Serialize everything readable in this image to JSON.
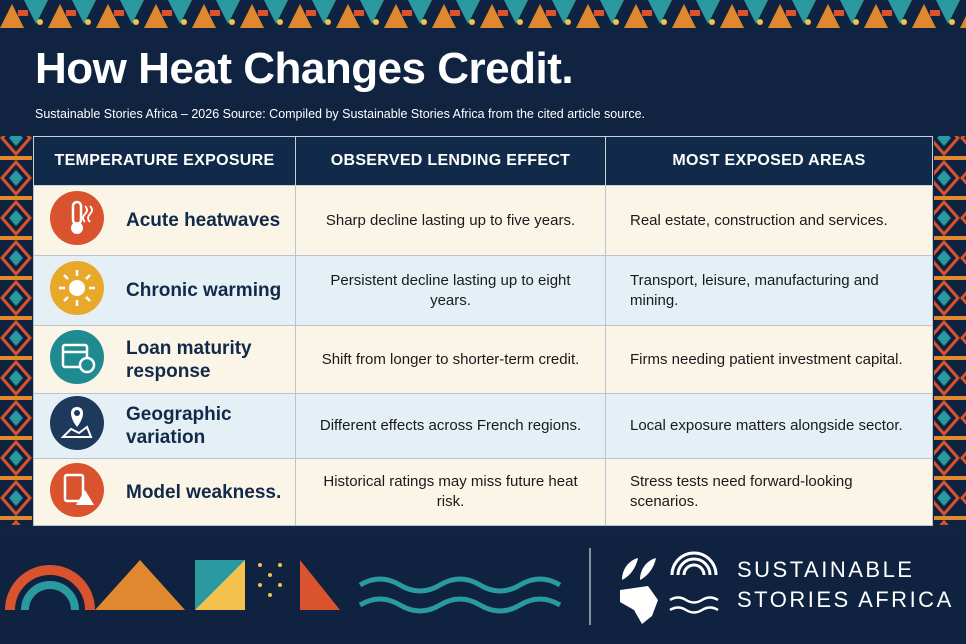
{
  "header": {
    "title": "How Heat Changes Credit.",
    "subtitle": "Sustainable Stories Africa – 2026 Source: Compiled by Sustainable Stories Africa from the cited article source."
  },
  "table": {
    "columns": [
      "TEMPERATURE EXPOSURE",
      "OBSERVED LENDING EFFECT",
      "MOST EXPOSED AREAS"
    ],
    "rows": [
      [
        "Acute heatwaves",
        "Sharp decline lasting up to five years.",
        "Real estate, construction and services."
      ],
      [
        "Chronic warming",
        "Persistent decline lasting up to eight years.",
        "Transport, leisure, manufacturing and mining."
      ],
      [
        "Loan maturity response",
        "Shift from longer to shorter-term credit.",
        "Firms needing patient investment capital."
      ],
      [
        "Geographic variation",
        "Different effects across French regions.",
        "Local exposure matters alongside sector."
      ],
      [
        "Model weakness.",
        "Historical ratings may miss future heat risk.",
        "Stress tests need forward-looking scenarios."
      ]
    ]
  },
  "logo": {
    "lines": [
      "SUSTAINABLE",
      "STORIES AFRICA"
    ]
  }
}
